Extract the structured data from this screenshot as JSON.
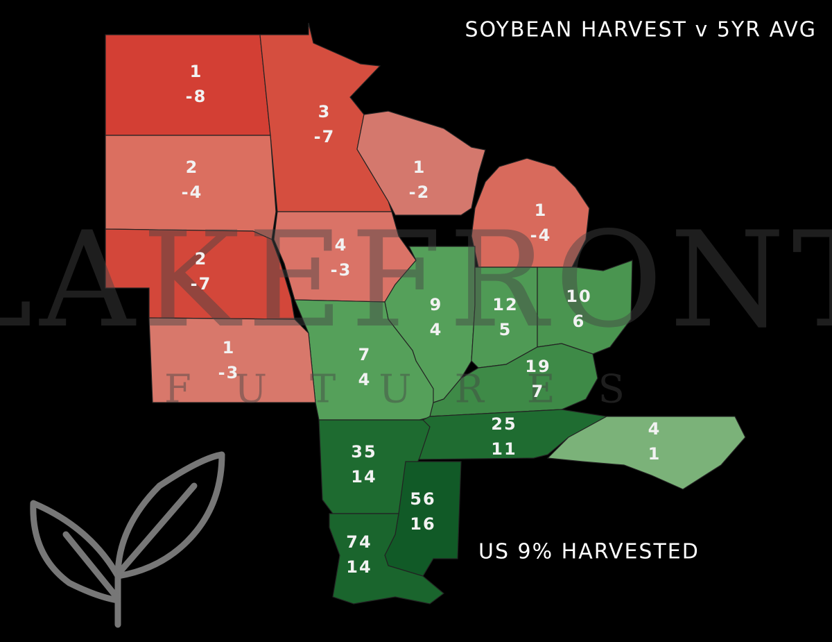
{
  "title": "SOYBEAN HARVEST v 5YR AVG",
  "summary": "US 9% HARVESTED",
  "watermark": {
    "name": "LAKEFRONT",
    "subtitle": "FUTURES"
  },
  "regions": [
    {
      "harvested": 1,
      "vs_avg": -8,
      "color": "#d33f34"
    },
    {
      "harvested": 3,
      "vs_avg": -7,
      "color": "#d54e3f"
    },
    {
      "harvested": 2,
      "vs_avg": -4,
      "color": "#db6f60"
    },
    {
      "harvested": 1,
      "vs_avg": -2,
      "color": "#d4786d"
    },
    {
      "harvested": 1,
      "vs_avg": -4,
      "color": "#d86a5c"
    },
    {
      "harvested": 2,
      "vs_avg": -7,
      "color": "#d3473a"
    },
    {
      "harvested": 4,
      "vs_avg": -3,
      "color": "#da7367"
    },
    {
      "harvested": 9,
      "vs_avg": 4,
      "color": "#55a05a"
    },
    {
      "harvested": 12,
      "vs_avg": 5,
      "color": "#4f9a55"
    },
    {
      "harvested": 10,
      "vs_avg": 6,
      "color": "#4a9550"
    },
    {
      "harvested": 7,
      "vs_avg": 4,
      "color": "#55a05a"
    },
    {
      "harvested": 19,
      "vs_avg": 7,
      "color": "#3e8a47"
    },
    {
      "harvested": 1,
      "vs_avg": -3,
      "color": "#d8786b"
    },
    {
      "harvested": 25,
      "vs_avg": 11,
      "color": "#1f6c31"
    },
    {
      "harvested": 4,
      "vs_avg": 1,
      "color": "#7bb279"
    },
    {
      "harvested": 35,
      "vs_avg": 14,
      "color": "#1e6b30"
    },
    {
      "harvested": 56,
      "vs_avg": 16,
      "color": "#115a27"
    },
    {
      "harvested": 74,
      "vs_avg": 14,
      "color": "#1a652d"
    }
  ]
}
